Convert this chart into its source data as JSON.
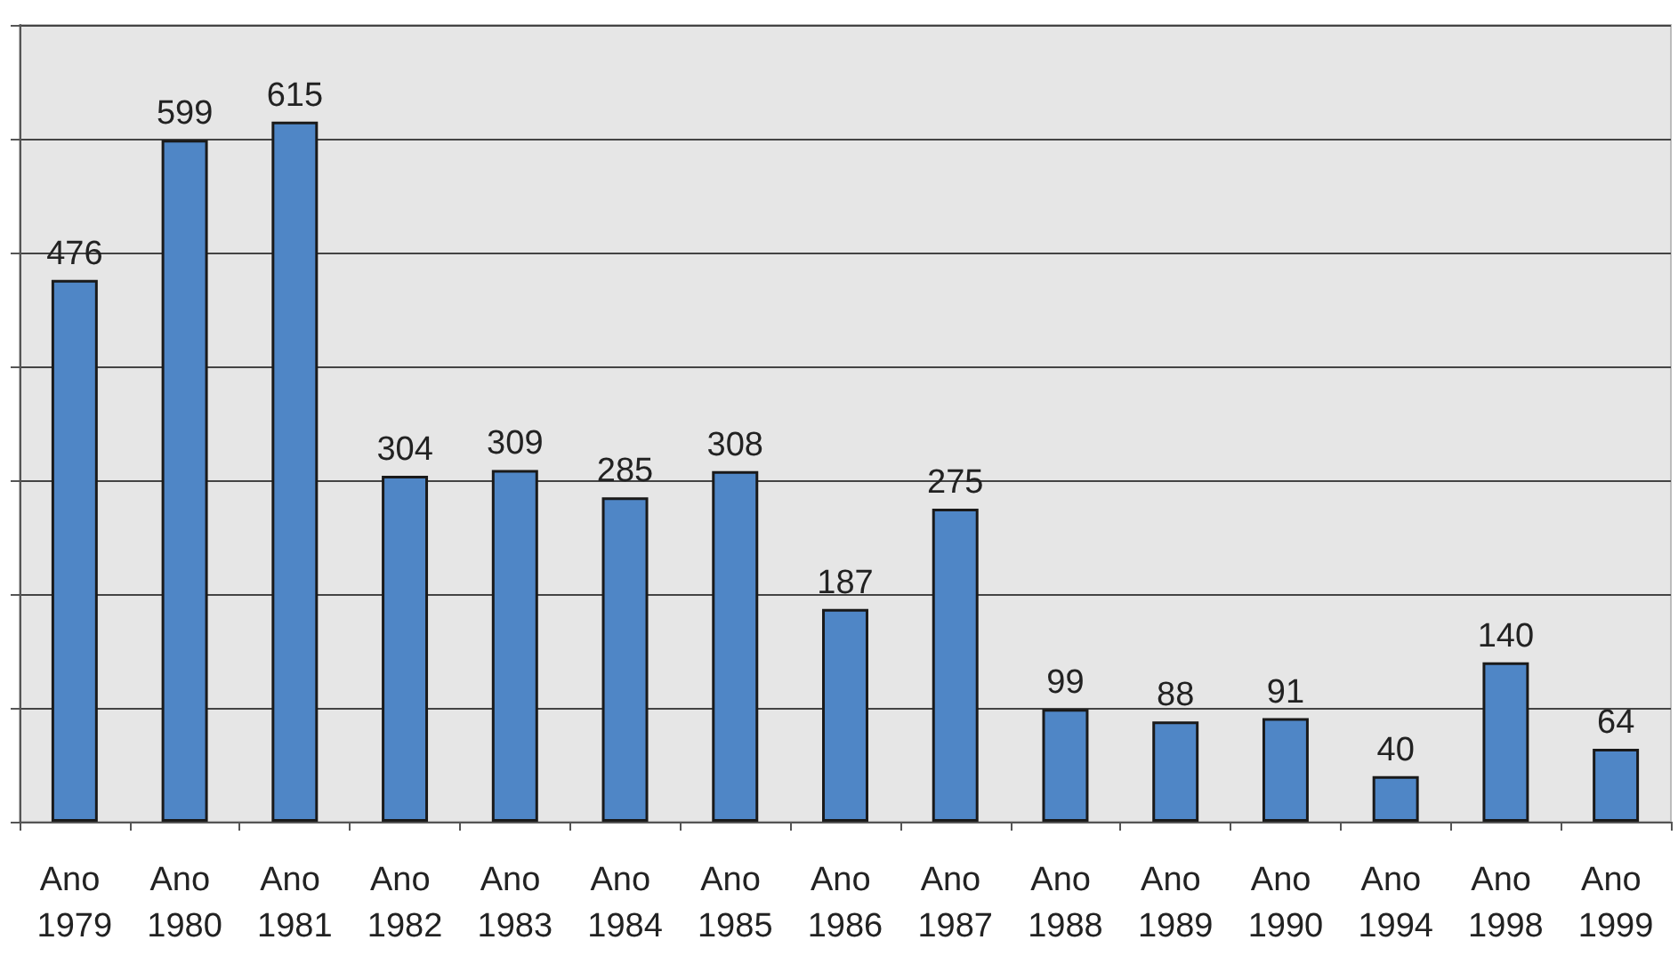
{
  "chart_data": {
    "type": "bar",
    "categories": [
      "Ano 1979",
      "Ano 1980",
      "Ano 1981",
      "Ano 1982",
      "Ano 1983",
      "Ano 1984",
      "Ano 1985",
      "Ano 1986",
      "Ano 1987",
      "Ano 1988",
      "Ano 1989",
      "Ano 1990",
      "Ano 1994",
      "Ano 1998",
      "Ano 1999"
    ],
    "values": [
      476,
      599,
      615,
      304,
      309,
      285,
      308,
      187,
      275,
      99,
      88,
      91,
      40,
      140,
      64
    ],
    "color": "#4f86c6",
    "ylim": [
      0,
      700
    ],
    "yticks": [
      {
        "value": 0,
        "label": null
      },
      {
        "value": 100,
        "label": null
      },
      {
        "value": 200,
        "label": null
      },
      {
        "value": 300,
        "label": null
      },
      {
        "value": 400,
        "label": null
      },
      {
        "value": 500,
        "label": null
      },
      {
        "value": 600,
        "label": null
      },
      {
        "value": 700,
        "label": null
      }
    ],
    "grid": "y",
    "data_labels": true
  }
}
